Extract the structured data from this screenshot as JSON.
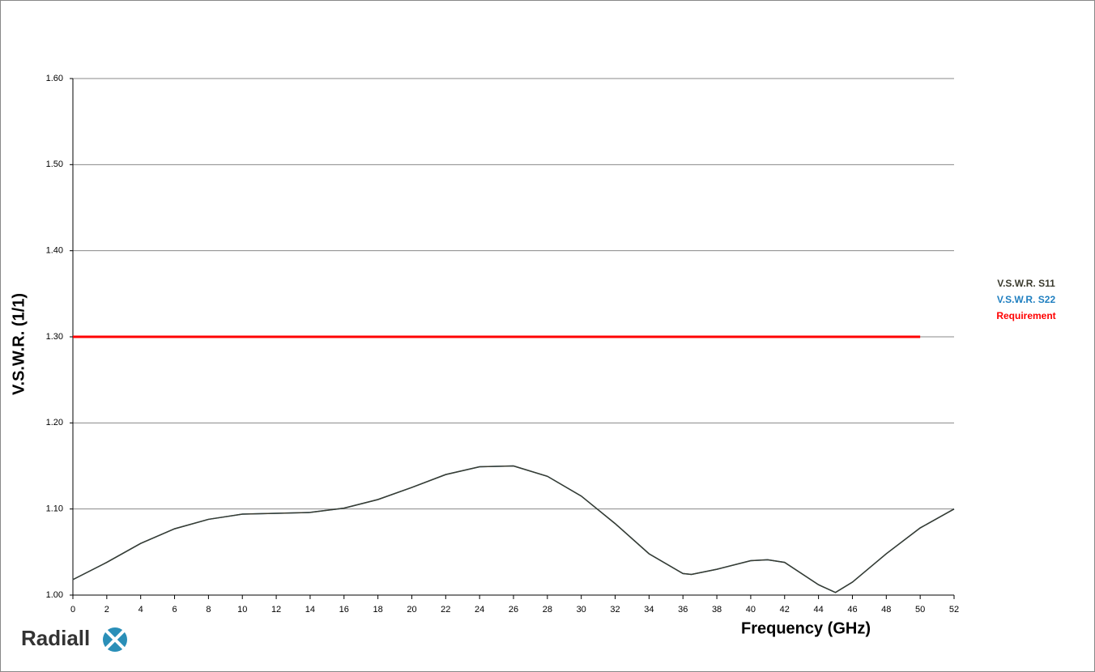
{
  "chart_data": {
    "type": "line",
    "y_label": "V.S.W.R. (1/1)",
    "x_label": "Frequency (GHz)",
    "x": [
      0,
      2,
      4,
      6,
      8,
      10,
      12,
      14,
      16,
      18,
      20,
      22,
      24,
      26,
      28,
      30,
      32,
      34,
      36,
      36.5,
      38,
      40,
      41,
      42,
      44,
      45,
      46,
      48,
      50,
      52
    ],
    "series": [
      {
        "name": "V.S.W.R. S22",
        "color": "#1f7fc0",
        "values": [
          1.018,
          1.038,
          1.06,
          1.077,
          1.088,
          1.094,
          1.095,
          1.096,
          1.101,
          1.111,
          1.125,
          1.14,
          1.149,
          1.15,
          1.138,
          1.115,
          1.083,
          1.048,
          1.025,
          1.024,
          1.03,
          1.04,
          1.041,
          1.038,
          1.012,
          1.003,
          1.015,
          1.048,
          1.078,
          1.1
        ]
      },
      {
        "name": "V.S.W.R. S11",
        "color": "#3b3b2e",
        "values": [
          1.018,
          1.038,
          1.06,
          1.077,
          1.088,
          1.094,
          1.095,
          1.096,
          1.101,
          1.111,
          1.125,
          1.14,
          1.149,
          1.15,
          1.138,
          1.115,
          1.083,
          1.048,
          1.025,
          1.024,
          1.03,
          1.04,
          1.041,
          1.038,
          1.012,
          1.003,
          1.015,
          1.048,
          1.078,
          1.1
        ]
      },
      {
        "name": "Requirement",
        "color": "#ff0000",
        "x": [
          0,
          50
        ],
        "values": [
          1.3,
          1.3
        ]
      }
    ],
    "xlim": [
      0,
      52
    ],
    "xticks": [
      0,
      2,
      4,
      6,
      8,
      10,
      12,
      14,
      16,
      18,
      20,
      22,
      24,
      26,
      28,
      30,
      32,
      34,
      36,
      38,
      40,
      42,
      44,
      46,
      48,
      50,
      52
    ],
    "ylim": [
      1,
      1.6
    ],
    "yticks": [
      {
        "value": 1,
        "label": "1.00"
      },
      {
        "value": 1.1,
        "label": "1.10"
      },
      {
        "value": 1.2,
        "label": "1.20"
      },
      {
        "value": 1.3,
        "label": "1.30"
      },
      {
        "value": 1.4,
        "label": "1.40"
      },
      {
        "value": 1.5,
        "label": "1.50"
      },
      {
        "value": 1.6,
        "label": "1.60"
      }
    ],
    "grid": true,
    "legend": "right",
    "legend_order": [
      1,
      0,
      2
    ]
  },
  "logo": "Radiall"
}
